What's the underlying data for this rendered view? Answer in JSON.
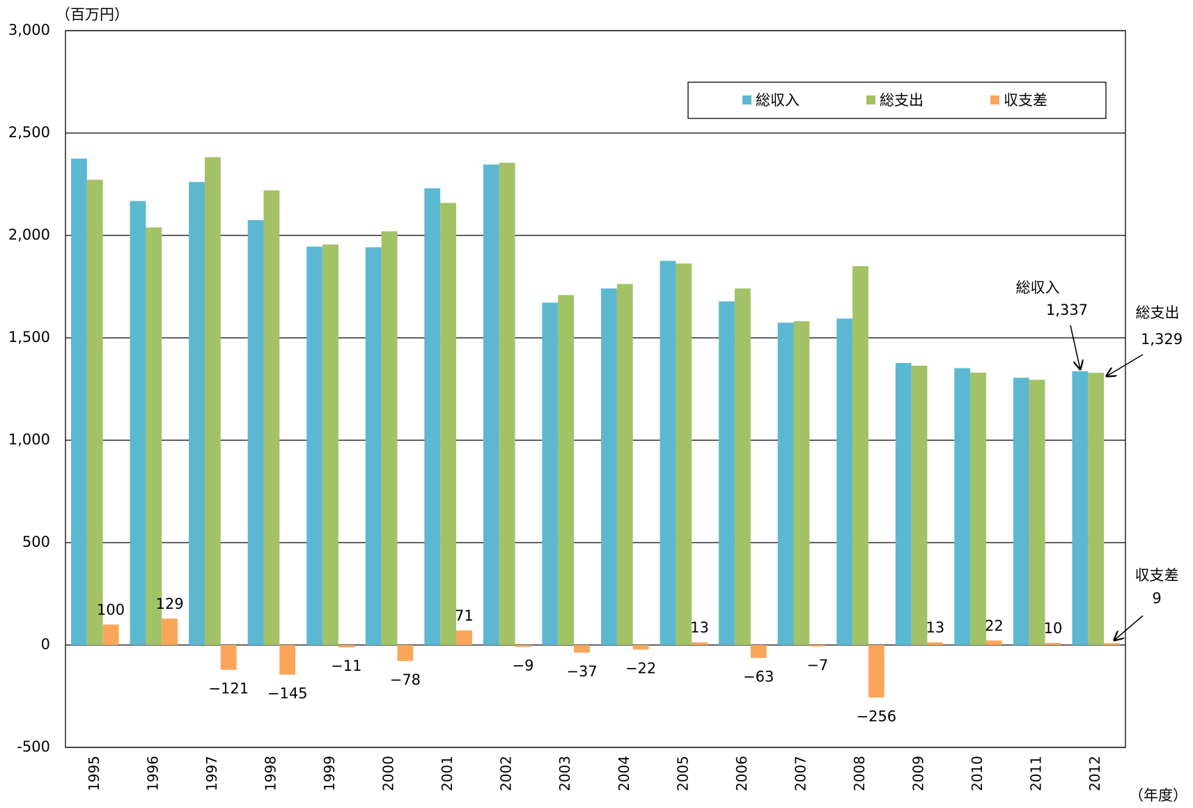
{
  "chart_data": {
    "type": "bar",
    "y_unit_label": "（百万円）",
    "x_unit_label": "（年度）",
    "categories": [
      "1995",
      "1996",
      "1997",
      "1998",
      "1999",
      "2000",
      "2001",
      "2002",
      "2003",
      "2004",
      "2005",
      "2006",
      "2007",
      "2008",
      "2009",
      "2010",
      "2011",
      "2012"
    ],
    "series": [
      {
        "name": "総収入",
        "color": "#5bb8d0",
        "values": [
          2375,
          2168,
          2261,
          2075,
          1945,
          1942,
          2230,
          2346,
          1672,
          1741,
          1876,
          1678,
          1574,
          1594,
          1377,
          1352,
          1305,
          1337
        ]
      },
      {
        "name": "総支出",
        "color": "#a3c266",
        "values": [
          2272,
          2039,
          2382,
          2220,
          1956,
          2020,
          2159,
          2355,
          1709,
          1763,
          1863,
          1741,
          1581,
          1850,
          1364,
          1330,
          1295,
          1329
        ]
      },
      {
        "name": "収支差",
        "color": "#f9a65a",
        "values": [
          100,
          129,
          -121,
          -145,
          -11,
          -78,
          71,
          -9,
          -37,
          -22,
          13,
          -63,
          -7,
          -256,
          13,
          22,
          10,
          9
        ],
        "value_labels": [
          "100",
          "129",
          "−121",
          "−145",
          "−11",
          "−78",
          "71",
          "−9",
          "−37",
          "−22",
          "13",
          "−63",
          "−7",
          "−256",
          "13",
          "22",
          "10",
          null
        ]
      }
    ],
    "annotations": [
      {
        "text": "総収入",
        "label": "1,337"
      },
      {
        "text": "総支出",
        "label": "1,329"
      },
      {
        "text": "収支差",
        "label": "9"
      }
    ],
    "ylim": [
      -500,
      3000
    ],
    "yticks": [
      {
        "value": -500,
        "label": "-500"
      },
      0,
      500,
      {
        "value": 1000,
        "label": "1,000"
      },
      {
        "value": 1500,
        "label": "1,500"
      },
      {
        "value": 2000,
        "label": "2,000"
      },
      {
        "value": 2500,
        "label": "2,500"
      },
      {
        "value": 3000,
        "label": "3,000"
      }
    ],
    "grid": true,
    "legend": "top-right"
  }
}
